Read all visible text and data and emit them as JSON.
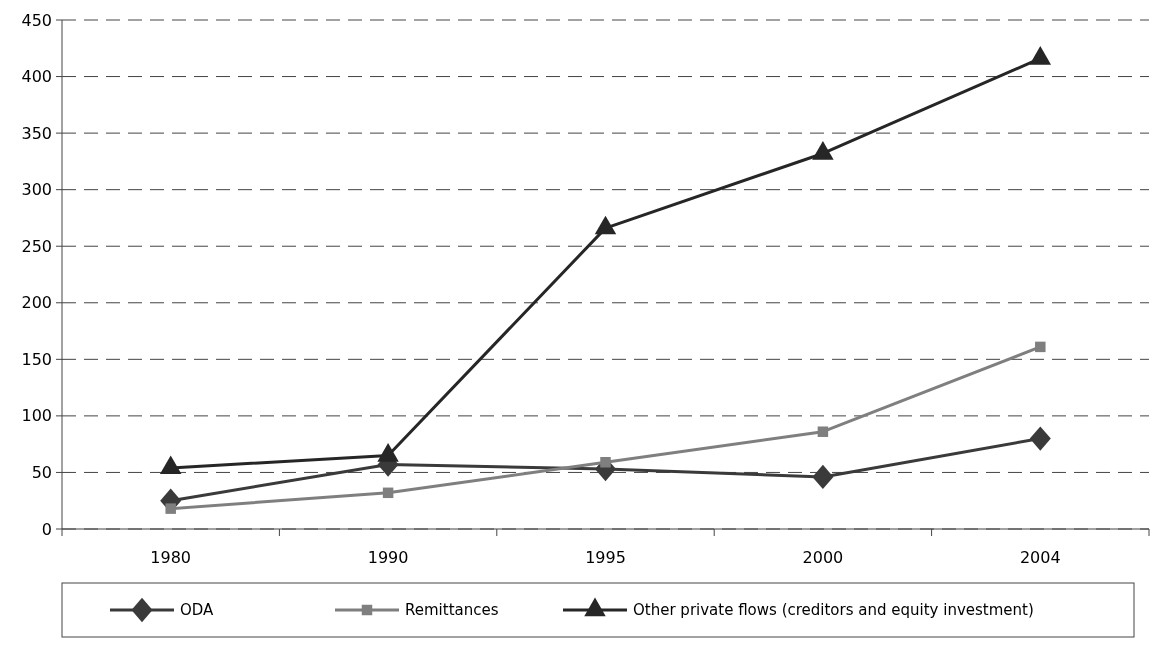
{
  "chart_data": {
    "type": "line",
    "categories": [
      "1980",
      "1990",
      "1995",
      "2000",
      "2004"
    ],
    "series": [
      {
        "name": "ODA",
        "color": "#3a3a3a",
        "marker": "diamond",
        "values": [
          25,
          57,
          53,
          46,
          80
        ]
      },
      {
        "name": "Remittances",
        "color": "#7f7f7f",
        "marker": "square",
        "values": [
          18,
          32,
          59,
          86,
          161
        ]
      },
      {
        "name": "Other private flows (creditors and equity investment)",
        "color": "#262626",
        "marker": "triangle",
        "values": [
          54,
          65,
          266,
          332,
          416
        ]
      }
    ],
    "ylim": [
      0,
      450
    ],
    "yticks": [
      0,
      50,
      100,
      150,
      200,
      250,
      300,
      350,
      400,
      450
    ],
    "grid": "y",
    "legend": "bottom",
    "line_style": "solid"
  }
}
